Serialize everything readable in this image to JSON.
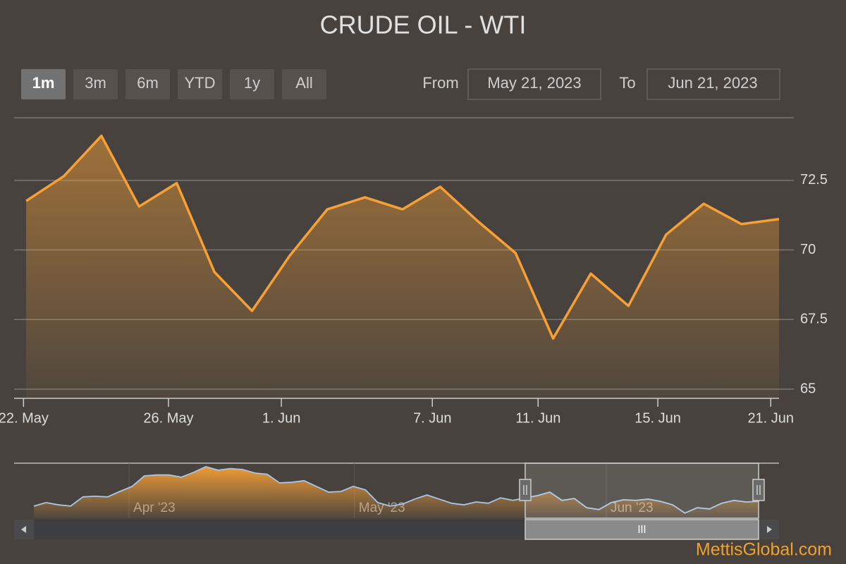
{
  "chart_data": {
    "type": "area",
    "title": "CRUDE OIL - WTI",
    "range_selector": {
      "buttons": [
        "1m",
        "3m",
        "6m",
        "YTD",
        "1y",
        "All"
      ],
      "selected": 0,
      "from_label": "From",
      "from": "May 21, 2023",
      "to_label": "To",
      "to": "Jun 21, 2023"
    },
    "series": [
      {
        "name": "WTI",
        "color": "#f7a035",
        "values": [
          71.76,
          72.65,
          74.1,
          71.56,
          72.4,
          69.21,
          67.81,
          69.79,
          71.46,
          71.89,
          71.46,
          72.27,
          71.03,
          69.89,
          66.82,
          69.15,
          67.99,
          70.55,
          71.66,
          70.93,
          71.11
        ]
      }
    ],
    "xlim": [
      -0.32,
      20
    ],
    "xticks": [
      {
        "value": -0.07,
        "label": "22. May"
      },
      {
        "value": 3.78,
        "label": "26. May"
      },
      {
        "value": 6.78,
        "label": "1. Jun"
      },
      {
        "value": 10.79,
        "label": "7. Jun"
      },
      {
        "value": 13.6,
        "label": "11. Jun"
      },
      {
        "value": 16.78,
        "label": "15. Jun"
      },
      {
        "value": 19.78,
        "label": "21. Jun"
      }
    ],
    "ylim": [
      64.67,
      74.75
    ],
    "yticks": [
      65,
      67.5,
      70,
      72.5
    ],
    "grid": true,
    "navigator": {
      "color": "#f7a035",
      "values": [
        69.3,
        70.4,
        69.7,
        69.3,
        72.2,
        72.4,
        72.2,
        73.9,
        75.5,
        78.8,
        79.1,
        79.1,
        78.4,
        79.9,
        81.7,
        80.6,
        81.1,
        80.8,
        79.7,
        79.3,
        76.6,
        76.8,
        77.3,
        75.5,
        73.7,
        73.9,
        75.5,
        74.4,
        70.4,
        69.3,
        69.9,
        71.5,
        72.8,
        71.5,
        70.2,
        69.7,
        70.6,
        70.2,
        71.9,
        71.1,
        71.9,
        72.6,
        73.7,
        71.1,
        71.7,
        68.8,
        68.2,
        70.4,
        71.3,
        71.1,
        71.5,
        70.8,
        69.7,
        67.1,
        68.8,
        68.4,
        70.2,
        71.1,
        70.6,
        70.8
      ],
      "xlim": [
        0,
        59
      ],
      "ylim": [
        65.5,
        82.8
      ],
      "xticks": [
        {
          "value": 7.75,
          "label": "Apr '23"
        },
        {
          "value": 26.1,
          "label": "May '23"
        },
        {
          "value": 46.6,
          "label": "Jun '23"
        }
      ],
      "window": [
        40,
        59
      ]
    },
    "watermark": "MettisGlobal.com"
  }
}
